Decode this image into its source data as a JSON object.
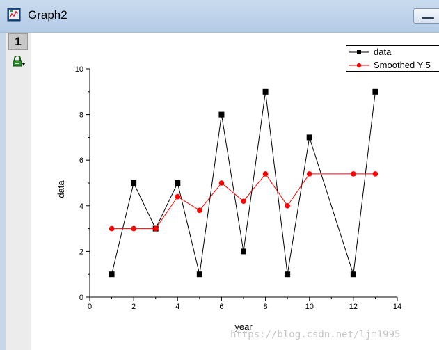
{
  "window": {
    "title": "Graph2",
    "icon": "graph-window-icon"
  },
  "layer_tab": {
    "label": "1"
  },
  "icons": {
    "lock": "lock-icon",
    "minimize": "minimize-icon"
  },
  "watermark": "https://blog.csdn.net/ljm1995",
  "chart_data": {
    "type": "line",
    "title": "",
    "xlabel": "year",
    "ylabel": "data",
    "xlim": [
      0,
      14
    ],
    "ylim": [
      0,
      10
    ],
    "xticks": [
      "0",
      "2",
      "4",
      "6",
      "8",
      "10",
      "12",
      "14"
    ],
    "yticks": [
      "0",
      "2",
      "4",
      "6",
      "8",
      "10"
    ],
    "grid": false,
    "legend_position": "top-right",
    "series": [
      {
        "name": "data",
        "color": "#000000",
        "marker": "square",
        "x": [
          1,
          2,
          3,
          4,
          5,
          6,
          7,
          8,
          9,
          10,
          12,
          13
        ],
        "y": [
          1,
          5,
          3,
          5,
          1,
          8,
          2,
          9,
          1,
          7,
          1,
          9
        ]
      },
      {
        "name": "Smoothed Y 5",
        "color": "#ff0000",
        "marker": "circle",
        "x": [
          1,
          2,
          3,
          4,
          5,
          6,
          7,
          8,
          9,
          10,
          12,
          13
        ],
        "y": [
          3,
          3,
          3,
          4.4,
          3.8,
          5,
          4.2,
          5.4,
          4,
          5.4,
          5.4,
          5.4
        ]
      }
    ]
  }
}
